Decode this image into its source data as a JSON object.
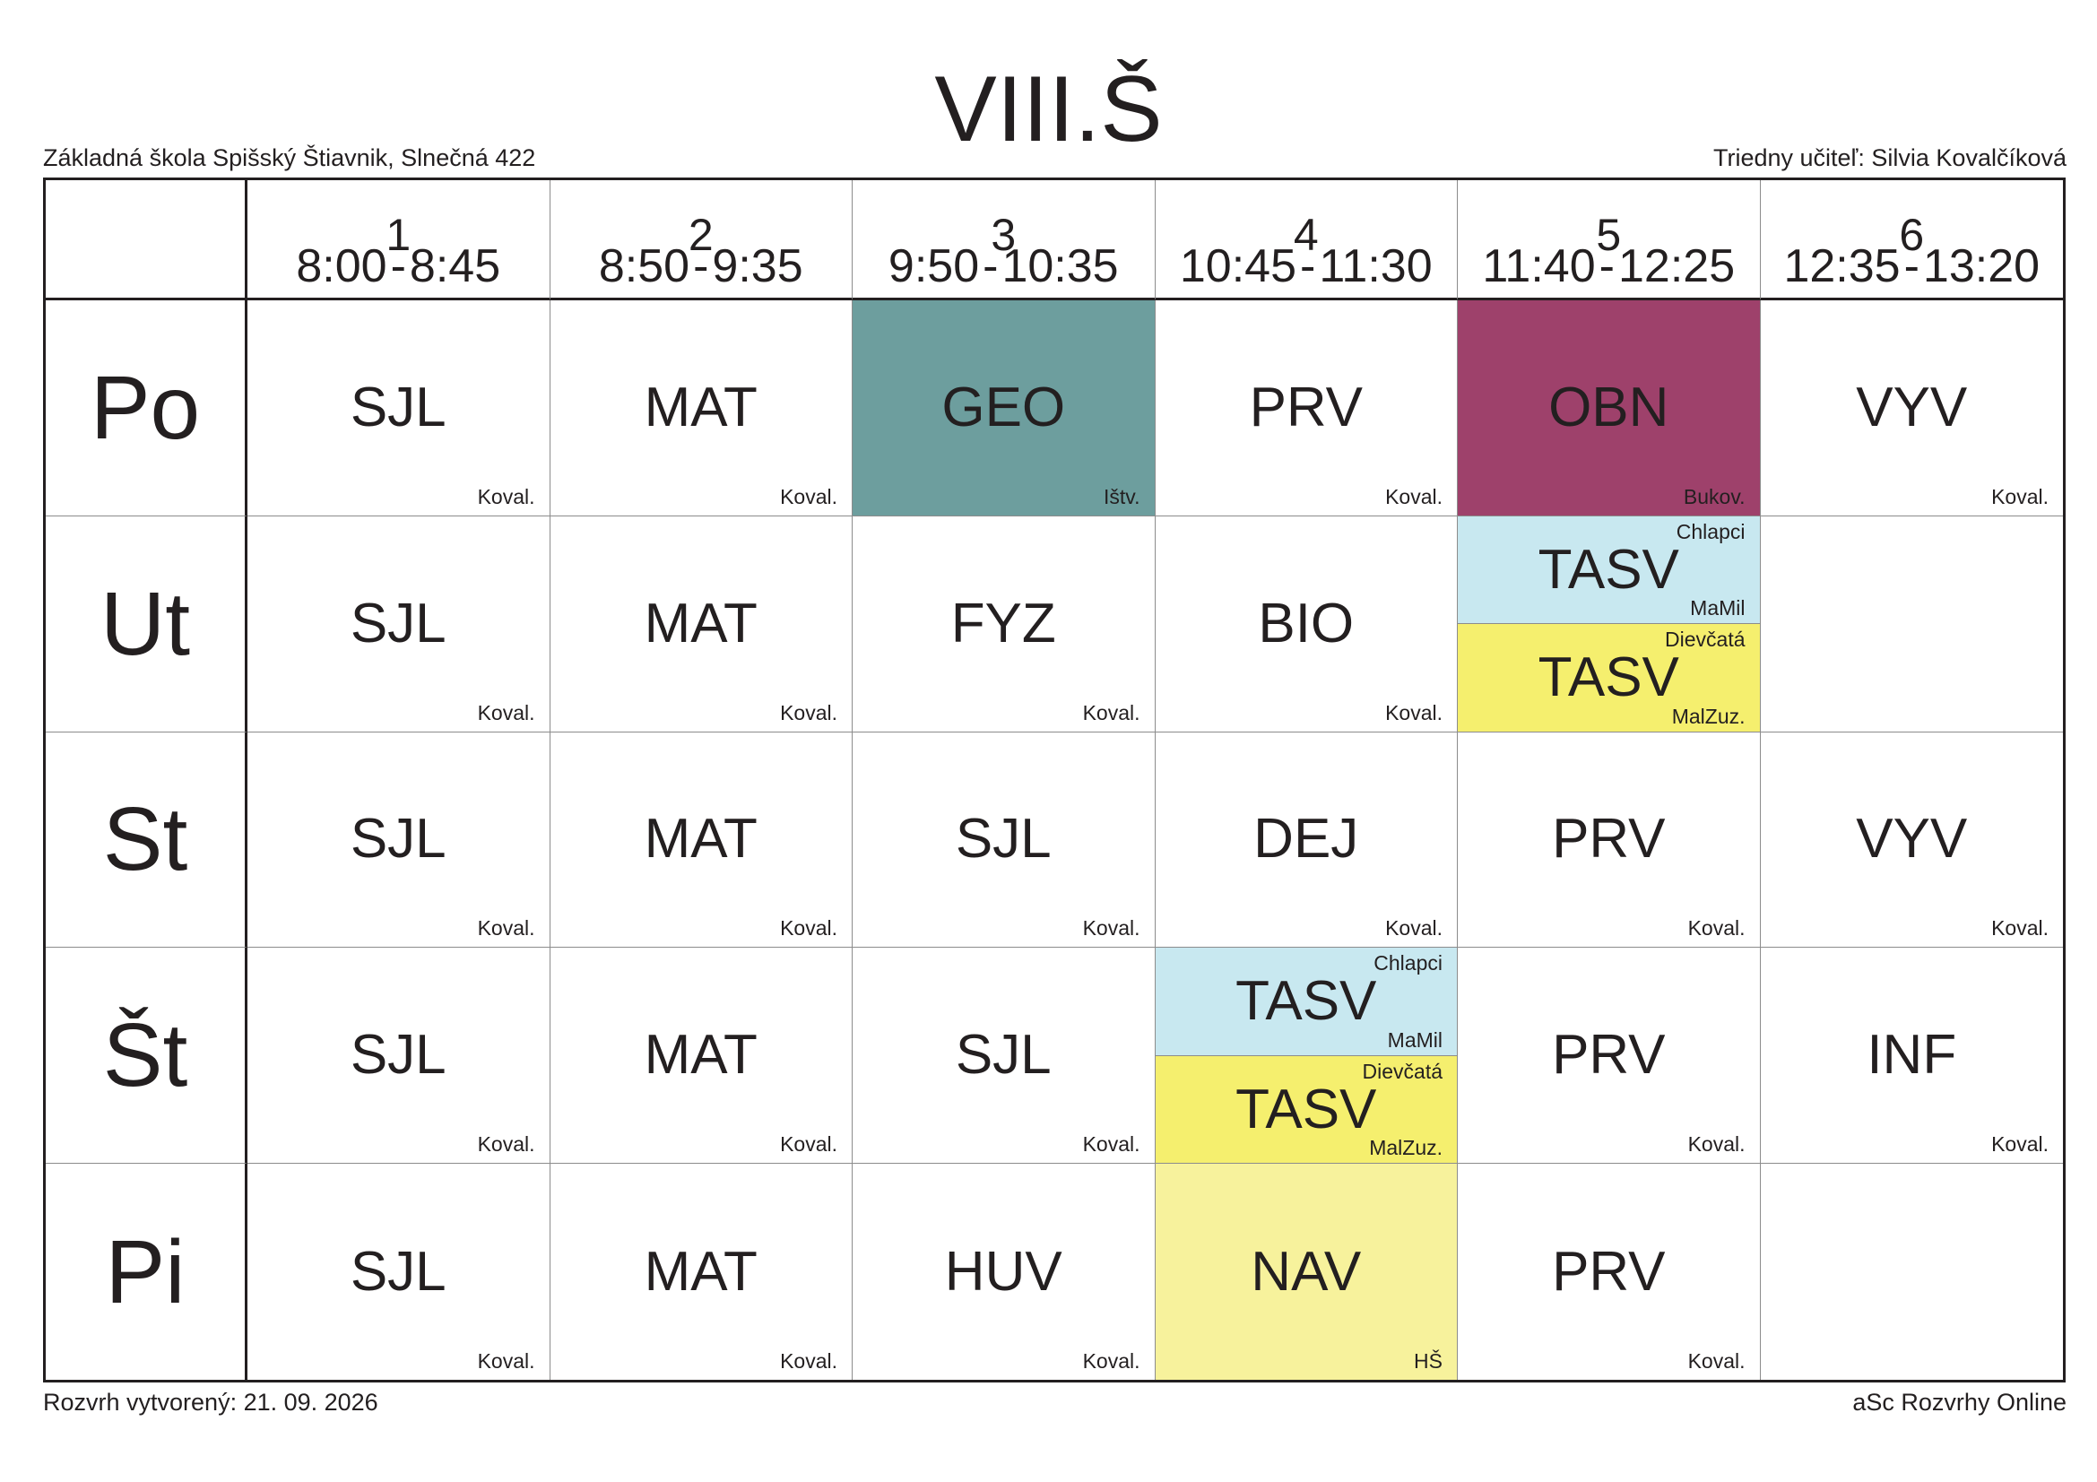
{
  "header": {
    "title": "VIII.Š",
    "school": "Základná škola Spišský Štiavnik, Slnečná 422",
    "class_teacher": "Triedny učiteľ: Silvia Kovalčíková"
  },
  "footer": {
    "created": "Rozvrh vytvorený: 21. 09. 2026",
    "brand": "aSc Rozvrhy Online"
  },
  "colors": {
    "geo": "#6d9e9e",
    "obn": "#9e416b",
    "tasv_boys": "#c8e8f0",
    "tasv_girls": "#f5ef6e",
    "nav": "#f7f29c"
  },
  "periods": [
    {
      "num": "1",
      "start": "8:00",
      "end": "8:45"
    },
    {
      "num": "2",
      "start": "8:50",
      "end": "9:35"
    },
    {
      "num": "3",
      "start": "9:50",
      "end": "10:35"
    },
    {
      "num": "4",
      "start": "10:45",
      "end": "11:30"
    },
    {
      "num": "5",
      "start": "11:40",
      "end": "12:25"
    },
    {
      "num": "6",
      "start": "12:35",
      "end": "13:20"
    }
  ],
  "days": [
    {
      "name": "Po",
      "lessons": [
        {
          "subject": "SJL",
          "teacher": "Koval."
        },
        {
          "subject": "MAT",
          "teacher": "Koval."
        },
        {
          "subject": "GEO",
          "teacher": "Ištv.",
          "color": "#6d9e9e"
        },
        {
          "subject": "PRV",
          "teacher": "Koval."
        },
        {
          "subject": "OBN",
          "teacher": "Bukov.",
          "color": "#9e416b"
        },
        {
          "subject": "VYV",
          "teacher": "Koval."
        }
      ]
    },
    {
      "name": "Ut",
      "lessons": [
        {
          "subject": "SJL",
          "teacher": "Koval."
        },
        {
          "subject": "MAT",
          "teacher": "Koval."
        },
        {
          "subject": "FYZ",
          "teacher": "Koval."
        },
        {
          "subject": "BIO",
          "teacher": "Koval."
        },
        {
          "split": [
            {
              "group": "Chlapci",
              "subject": "TASV",
              "teacher": "MaMil",
              "color": "#c8e8f0"
            },
            {
              "group": "Dievčatá",
              "subject": "TASV",
              "teacher": "MalZuz.",
              "color": "#f5ef6e"
            }
          ]
        },
        {
          "subject": "",
          "teacher": ""
        }
      ]
    },
    {
      "name": "St",
      "lessons": [
        {
          "subject": "SJL",
          "teacher": "Koval."
        },
        {
          "subject": "MAT",
          "teacher": "Koval."
        },
        {
          "subject": "SJL",
          "teacher": "Koval."
        },
        {
          "subject": "DEJ",
          "teacher": "Koval."
        },
        {
          "subject": "PRV",
          "teacher": "Koval."
        },
        {
          "subject": "VYV",
          "teacher": "Koval."
        }
      ]
    },
    {
      "name": "Št",
      "lessons": [
        {
          "subject": "SJL",
          "teacher": "Koval."
        },
        {
          "subject": "MAT",
          "teacher": "Koval."
        },
        {
          "subject": "SJL",
          "teacher": "Koval."
        },
        {
          "split": [
            {
              "group": "Chlapci",
              "subject": "TASV",
              "teacher": "MaMil",
              "color": "#c8e8f0"
            },
            {
              "group": "Dievčatá",
              "subject": "TASV",
              "teacher": "MalZuz.",
              "color": "#f5ef6e"
            }
          ]
        },
        {
          "subject": "PRV",
          "teacher": "Koval."
        },
        {
          "subject": "INF",
          "teacher": "Koval."
        }
      ]
    },
    {
      "name": "Pi",
      "lessons": [
        {
          "subject": "SJL",
          "teacher": "Koval."
        },
        {
          "subject": "MAT",
          "teacher": "Koval."
        },
        {
          "subject": "HUV",
          "teacher": "Koval."
        },
        {
          "subject": "NAV",
          "teacher": "HŠ",
          "color": "#f7f29c"
        },
        {
          "subject": "PRV",
          "teacher": "Koval."
        },
        {
          "subject": "",
          "teacher": ""
        }
      ]
    }
  ]
}
